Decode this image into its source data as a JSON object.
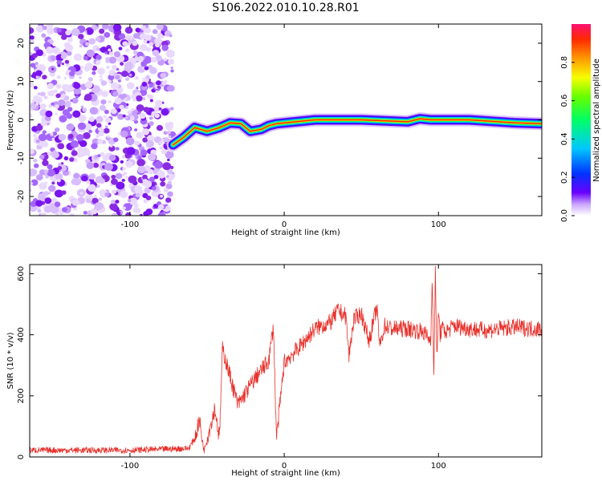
{
  "title": "S106.2022.010.10.28.R01",
  "chart_data": [
    {
      "type": "heatmap",
      "xlabel": "Height of straight line (km)",
      "ylabel": "Frequency (Hz)",
      "xlim": [
        -165,
        167
      ],
      "ylim": [
        -25,
        25
      ],
      "xticks": [
        -100,
        0,
        100
      ],
      "yticks": [
        -20,
        -10,
        0,
        10,
        20
      ],
      "colorbar": {
        "label": "Normalized spectral amplitude",
        "range": [
          0,
          1
        ],
        "ticks": [
          "0.0",
          "0.2",
          "0.4",
          "0.6",
          "0.8"
        ]
      },
      "noise_region_x": [
        -165,
        -72
      ],
      "ridge": [
        {
          "x": -72,
          "y": -6.5
        },
        {
          "x": -65,
          "y": -4.5
        },
        {
          "x": -58,
          "y": -2.0
        },
        {
          "x": -50,
          "y": -3.0
        },
        {
          "x": -42,
          "y": -2.0
        },
        {
          "x": -35,
          "y": -0.8
        },
        {
          "x": -28,
          "y": -1.0
        },
        {
          "x": -22,
          "y": -3.0
        },
        {
          "x": -15,
          "y": -2.5
        },
        {
          "x": -10,
          "y": -1.5
        },
        {
          "x": -5,
          "y": -1.0
        },
        {
          "x": 5,
          "y": -0.6
        },
        {
          "x": 20,
          "y": 0.0
        },
        {
          "x": 50,
          "y": 0.0
        },
        {
          "x": 80,
          "y": -0.5
        },
        {
          "x": 88,
          "y": 0.3
        },
        {
          "x": 95,
          "y": 0.0
        },
        {
          "x": 120,
          "y": 0.0
        },
        {
          "x": 150,
          "y": -0.8
        },
        {
          "x": 167,
          "y": -1.0
        }
      ]
    },
    {
      "type": "line",
      "xlabel": "Height of straight line (km)",
      "ylabel": "SNR (10 * v/v)",
      "xlim": [
        -165,
        167
      ],
      "ylim": [
        0,
        630
      ],
      "xticks": [
        -100,
        0,
        100
      ],
      "yticks": [
        0,
        200,
        400,
        600
      ],
      "color": "#e8302a",
      "series": [
        {
          "x": [
            -165,
            -100,
            -62,
            -58,
            -55,
            -52,
            -45,
            -42,
            -40,
            -30,
            -20,
            -10,
            -7,
            -5,
            0,
            10,
            20,
            30,
            35,
            40,
            42,
            45,
            50,
            55,
            60,
            62,
            65,
            70,
            80,
            90,
            95,
            96,
            97,
            98,
            99,
            100,
            101,
            102,
            105,
            110,
            120,
            130,
            140,
            150,
            160,
            167
          ],
          "y": [
            22,
            22,
            28,
            60,
            120,
            20,
            160,
            60,
            355,
            170,
            250,
            315,
            430,
            60,
            310,
            360,
            420,
            440,
            480,
            460,
            330,
            450,
            470,
            380,
            490,
            360,
            430,
            420,
            420,
            410,
            380,
            610,
            240,
            630,
            300,
            490,
            400,
            420,
            410,
            430,
            420,
            415,
            420,
            425,
            420,
            420
          ]
        }
      ]
    }
  ]
}
